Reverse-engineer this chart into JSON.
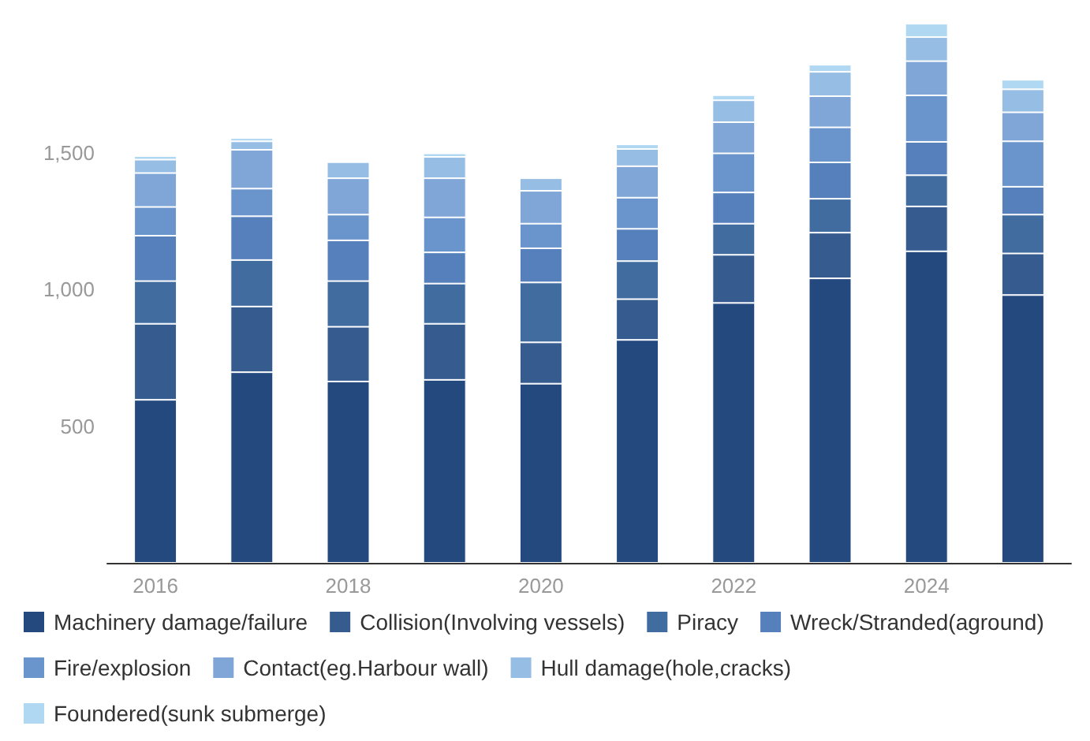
{
  "chart_data": {
    "type": "bar",
    "stacked": true,
    "categories": [
      "2016",
      null,
      "2018",
      null,
      "2020",
      null,
      "2022",
      null,
      "2024",
      null
    ],
    "series": [
      {
        "name": "Machinery damage/failure",
        "color": "#24497f",
        "values": [
          596,
          697,
          663,
          669,
          655,
          815,
          950,
          1040,
          1139,
          979
        ]
      },
      {
        "name": "Collision(Involving vessels)",
        "color": "#355b8f",
        "values": [
          278,
          240,
          200,
          205,
          151,
          149,
          176,
          167,
          164,
          152
        ]
      },
      {
        "name": "Piracy",
        "color": "#416ca0",
        "values": [
          156,
          170,
          167,
          147,
          219,
          139,
          114,
          124,
          114,
          142
        ]
      },
      {
        "name": "Wreck/Stranded(aground)",
        "color": "#5580bb",
        "values": [
          166,
          160,
          149,
          114,
          125,
          118,
          114,
          133,
          122,
          102
        ]
      },
      {
        "name": "Fire/explosion",
        "color": "#6a95cc",
        "values": [
          105,
          101,
          94,
          128,
          90,
          114,
          143,
          128,
          170,
          166
        ]
      },
      {
        "name": "Contact(eg.Harbour wall)",
        "color": "#80a6d8",
        "values": [
          124,
          142,
          133,
          143,
          120,
          115,
          114,
          114,
          125,
          106
        ]
      },
      {
        "name": "Hull damage(hole,cracks)",
        "color": "#96bde3",
        "values": [
          49,
          31,
          59,
          78,
          46,
          63,
          80,
          89,
          88,
          84
        ]
      },
      {
        "name": "Foundered(sunk submerge)",
        "color": "#b0d8f3",
        "values": [
          13,
          12,
          4,
          13,
          5,
          17,
          19,
          26,
          49,
          35
        ]
      }
    ],
    "ylim": [
      0,
      2000
    ],
    "yticks": [
      {
        "value": 0,
        "label": null
      },
      500,
      {
        "value": 1000,
        "label": "1,000"
      },
      {
        "value": 1500,
        "label": "1,500"
      }
    ],
    "grid": false,
    "legend": "bottom"
  }
}
